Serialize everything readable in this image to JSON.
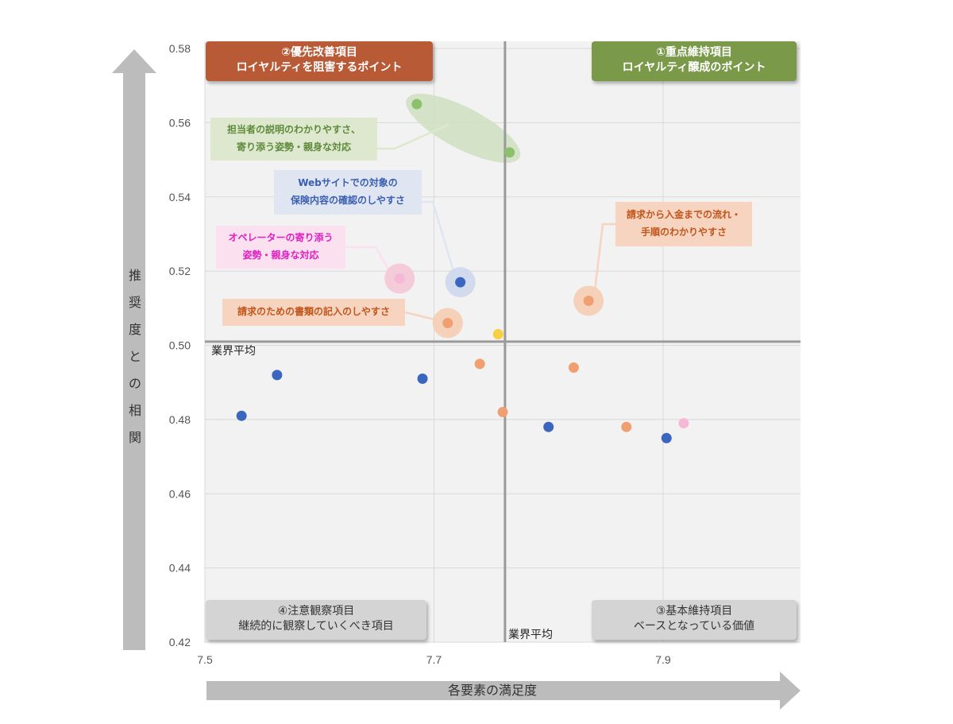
{
  "chart_data": {
    "type": "scatter",
    "ylabel": "推奨度との相関",
    "xlabel": "各要素の満足度",
    "xlim": [
      7.5,
      8.02
    ],
    "ylim": [
      0.42,
      0.58
    ],
    "x_ticks": [
      "7.5",
      "7.7",
      "7.9"
    ],
    "y_ticks": [
      "0.58",
      "0.56",
      "0.54",
      "0.52",
      "0.50",
      "0.48",
      "0.46",
      "0.44",
      "0.42"
    ],
    "grid": true,
    "industry_average": {
      "x": 7.762,
      "y": 0.501,
      "x_label": "業界平均",
      "y_label": "業界平均"
    },
    "quadrants": [
      {
        "title": "②優先改善項目",
        "subtitle": "ロイヤルティを阻害するポイント",
        "position": "top-left",
        "color": "#b85a35"
      },
      {
        "title": "①重点維持項目",
        "subtitle": "ロイヤルティ醸成のポイント",
        "position": "top-right",
        "color": "#7a9a4a"
      },
      {
        "title": "④注意観察項目",
        "subtitle": "継続的に観察していくべき項目",
        "position": "bottom-left",
        "color": "#d4d4d4"
      },
      {
        "title": "③基本維持項目",
        "subtitle": "ベースとなっている価値",
        "position": "bottom-right",
        "color": "#d4d4d4"
      }
    ],
    "points": [
      {
        "x": 7.685,
        "y": 0.565,
        "color": "#8cc06a"
      },
      {
        "x": 7.766,
        "y": 0.552,
        "color": "#8cc06a"
      },
      {
        "x": 7.723,
        "y": 0.517,
        "color": "#3a66c0"
      },
      {
        "x": 7.67,
        "y": 0.518,
        "color": "#f7b8d8"
      },
      {
        "x": 7.712,
        "y": 0.506,
        "color": "#f0a070"
      },
      {
        "x": 7.756,
        "y": 0.503,
        "color": "#f5d042"
      },
      {
        "x": 7.835,
        "y": 0.512,
        "color": "#f0a070"
      },
      {
        "x": 7.532,
        "y": 0.481,
        "color": "#3a66c0"
      },
      {
        "x": 7.563,
        "y": 0.492,
        "color": "#3a66c0"
      },
      {
        "x": 7.69,
        "y": 0.491,
        "color": "#3a66c0"
      },
      {
        "x": 7.74,
        "y": 0.495,
        "color": "#f0a070"
      },
      {
        "x": 7.76,
        "y": 0.482,
        "color": "#f0a070"
      },
      {
        "x": 7.8,
        "y": 0.478,
        "color": "#3a66c0"
      },
      {
        "x": 7.822,
        "y": 0.494,
        "color": "#f0a070"
      },
      {
        "x": 7.868,
        "y": 0.478,
        "color": "#f0a070"
      },
      {
        "x": 7.903,
        "y": 0.475,
        "color": "#3a66c0"
      },
      {
        "x": 7.918,
        "y": 0.479,
        "color": "#f7b8d8"
      }
    ],
    "highlights": [
      {
        "x": 7.67,
        "y": 0.518,
        "color": "#f4c6d6"
      },
      {
        "x": 7.723,
        "y": 0.517,
        "color": "#cdd8ec"
      },
      {
        "x": 7.712,
        "y": 0.506,
        "color": "#f6cdb3"
      },
      {
        "x": 7.835,
        "y": 0.512,
        "color": "#f6cdb3"
      }
    ],
    "annotations": [
      {
        "lines": [
          "担当者の説明のわかりやすさ、",
          "寄り添う姿勢・親身な対応"
        ],
        "color": "#5e8a3a",
        "bg": "#dde8cf",
        "point": 0
      },
      {
        "lines": [
          "Webサイトでの対象の",
          "保険内容の確認のしやすさ"
        ],
        "color": "#3a5fb0",
        "bg": "#dfe5f1",
        "point": 2
      },
      {
        "lines": [
          "オペレーターの寄り添う",
          "姿勢・親身な対応"
        ],
        "color": "#e020c0",
        "bg": "#fbe0f0",
        "point": 3
      },
      {
        "lines": [
          "請求のための書類の記入のしやすさ"
        ],
        "color": "#c0561c",
        "bg": "#f6d4bf",
        "point": 4
      },
      {
        "lines": [
          "請求から入金までの流れ・",
          "手順のわかりやすさ"
        ],
        "color": "#c0561c",
        "bg": "#f6d4bf",
        "point": 6
      }
    ]
  }
}
